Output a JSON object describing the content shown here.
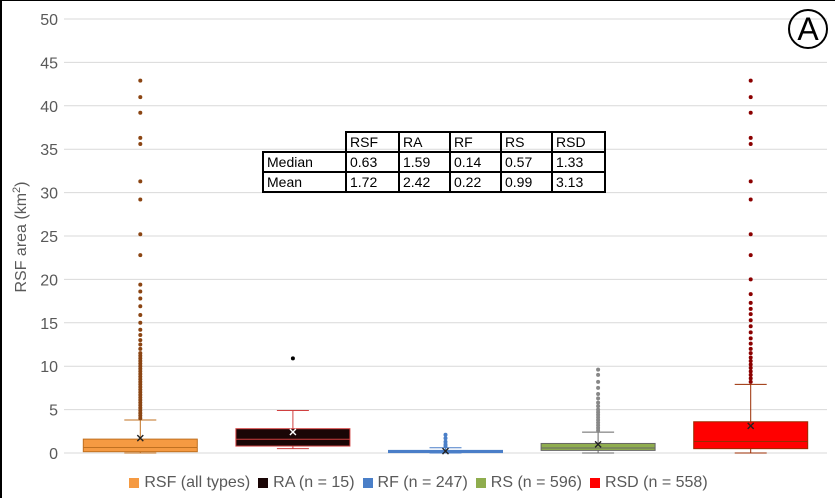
{
  "chart_data": {
    "type": "box",
    "badge": "A",
    "ylabel_main": "RSF area (km",
    "ylabel_sup": "2",
    "ylabel_close": ")",
    "ylim": [
      0,
      50
    ],
    "yticks": [
      "0",
      "5",
      "10",
      "15",
      "20",
      "25",
      "30",
      "35",
      "40",
      "45",
      "50"
    ],
    "grid": "horizontal",
    "legend_position": "bottom",
    "series": [
      {
        "name": "RSF (all types)",
        "fill": "#f59a42",
        "stroke": "#c07020",
        "q1": 0.15,
        "median": 0.63,
        "q3": 1.6,
        "whisker_low": 0.0,
        "whisker_high": 3.8,
        "mean": 1.72,
        "outlier_color": "#8b4513",
        "outliers": [
          4.0,
          4.3,
          4.6,
          4.9,
          5.2,
          5.5,
          5.8,
          6.1,
          6.4,
          6.7,
          7.0,
          7.3,
          7.6,
          7.9,
          8.2,
          8.5,
          8.8,
          9.1,
          9.4,
          9.7,
          10.0,
          10.3,
          10.6,
          10.9,
          11.2,
          11.5,
          12.0,
          12.5,
          13.0,
          13.6,
          14.2,
          15.0,
          15.9,
          16.9,
          17.8,
          18.6,
          19.4,
          22.8,
          25.2,
          29.2,
          31.3,
          35.6,
          36.3,
          39.2,
          41.0,
          42.9
        ]
      },
      {
        "name": "RA (n = 15)",
        "fill": "#1a0606",
        "stroke": "#d04040",
        "q1": 0.8,
        "median": 1.59,
        "q3": 2.8,
        "whisker_low": 0.5,
        "whisker_high": 4.9,
        "mean": 2.42,
        "outlier_color": "#000000",
        "outliers": [
          10.9
        ]
      },
      {
        "name": "RF (n = 247)",
        "fill": "#4a7fc8",
        "stroke": "#4a7fc8",
        "q1": 0.05,
        "median": 0.14,
        "q3": 0.3,
        "whisker_low": 0.0,
        "whisker_high": 0.6,
        "mean": 0.22,
        "outlier_color": "#4a7fc8",
        "outliers": [
          0.8,
          1.0,
          1.3,
          1.7,
          2.1
        ]
      },
      {
        "name": "RS (n = 596)",
        "fill": "#8fad4e",
        "stroke": "#666666",
        "q1": 0.3,
        "median": 0.57,
        "q3": 1.1,
        "whisker_low": 0.0,
        "whisker_high": 2.4,
        "mean": 0.99,
        "outlier_color": "#888888",
        "outliers": [
          2.6,
          2.9,
          3.2,
          3.5,
          3.8,
          4.1,
          4.4,
          4.7,
          5.0,
          5.4,
          5.8,
          6.3,
          6.8,
          7.5,
          8.2,
          9.0,
          9.6
        ]
      },
      {
        "name": "RSD (n = 558)",
        "fill": "#ff0000",
        "stroke": "#9a2b00",
        "q1": 0.5,
        "median": 1.33,
        "q3": 3.6,
        "whisker_low": 0.0,
        "whisker_high": 7.9,
        "mean": 3.13,
        "outlier_color": "#8b0000",
        "outliers": [
          8.2,
          8.6,
          9.0,
          9.4,
          9.8,
          10.2,
          10.6,
          11.0,
          11.5,
          12.0,
          12.6,
          13.2,
          13.9,
          14.6,
          15.3,
          16.0,
          16.6,
          17.3,
          18.3,
          20.0,
          22.8,
          25.2,
          29.2,
          31.3,
          35.6,
          36.3,
          39.2,
          41.0,
          42.9
        ]
      }
    ],
    "table": {
      "columns": [
        "RSF",
        "RA",
        "RF",
        "RS",
        "RSD"
      ],
      "rows": [
        {
          "label": "Median",
          "values": [
            "0.63",
            "1.59",
            "0.14",
            "0.57",
            "1.33"
          ]
        },
        {
          "label": "Mean",
          "values": [
            "1.72",
            "2.42",
            "0.22",
            "0.99",
            "3.13"
          ]
        }
      ]
    }
  }
}
